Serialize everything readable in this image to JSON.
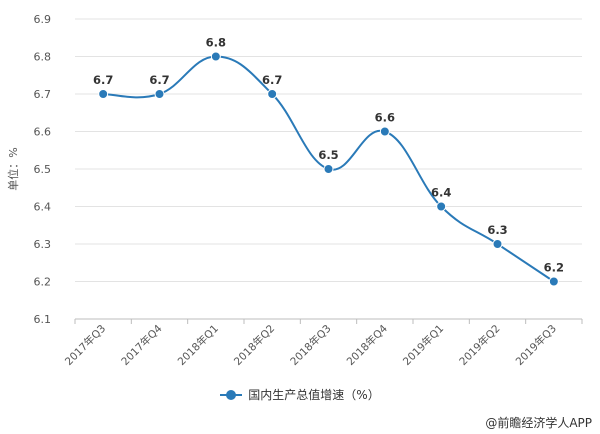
{
  "chart_data": {
    "type": "line",
    "categories": [
      "2017年Q3",
      "2017年Q4",
      "2018年Q1",
      "2018年Q2",
      "2018年Q3",
      "2018年Q4",
      "2019年Q1",
      "2019年Q2",
      "2019年Q3"
    ],
    "series": [
      {
        "name": "国内生产总值增速（%）",
        "values": [
          6.7,
          6.7,
          6.8,
          6.7,
          6.5,
          6.6,
          6.4,
          6.3,
          6.2
        ],
        "color": "#2a7ab8"
      }
    ],
    "ylabel": "单位：%",
    "ylim": [
      6.1,
      6.9
    ],
    "yticks": [
      "6.1",
      "6.2",
      "6.3",
      "6.4",
      "6.5",
      "6.6",
      "6.7",
      "6.8",
      "6.9"
    ],
    "grid": true,
    "legend": "bottom-center"
  },
  "credit": "@前瞻经济学人APP"
}
